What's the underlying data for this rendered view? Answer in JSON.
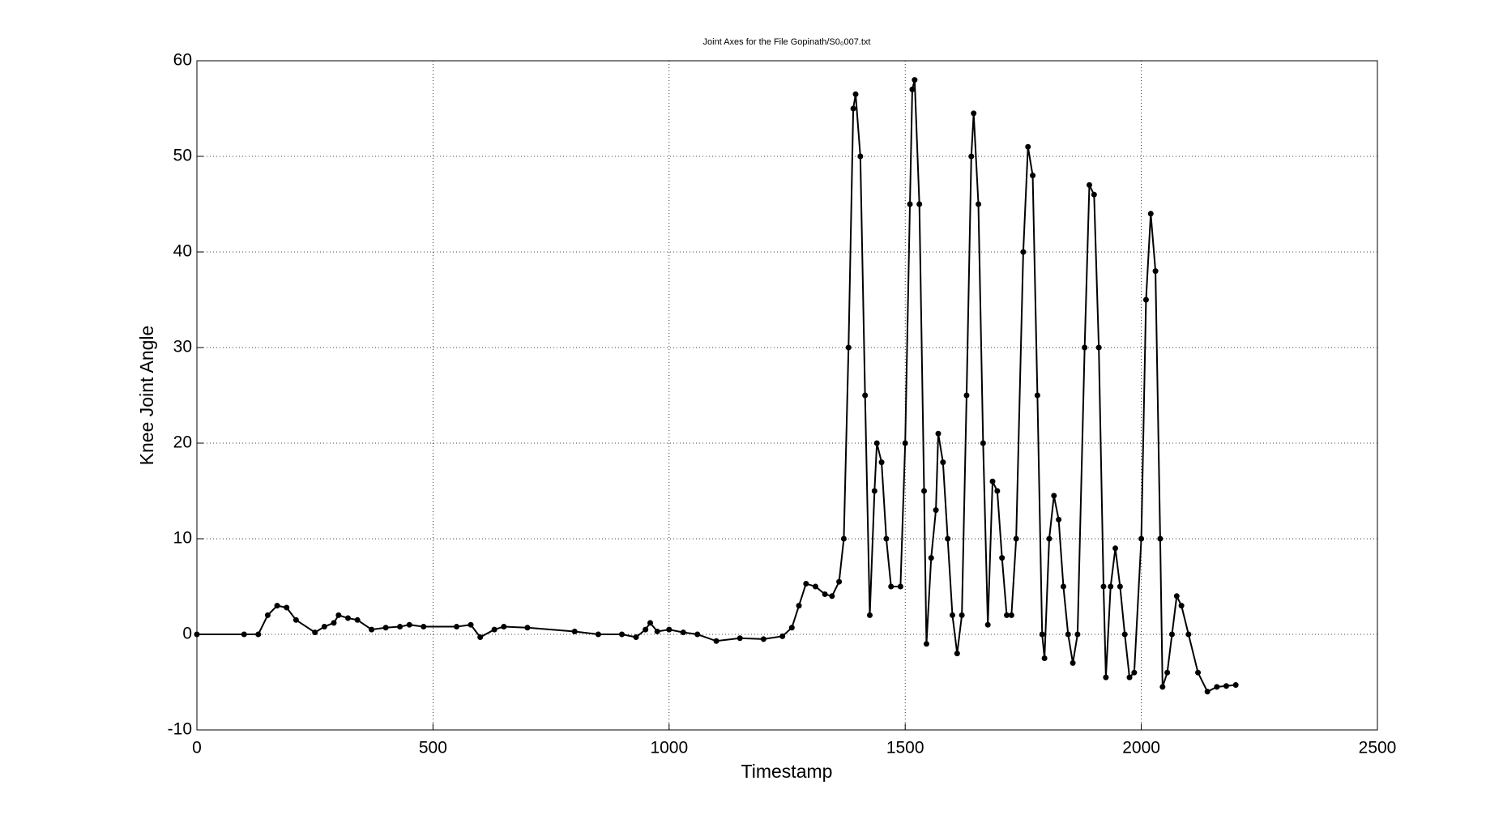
{
  "chart_data": {
    "type": "line",
    "title": "Joint Axes for the File Gopinath/S0₀007.txt",
    "x_label": "Timestamp",
    "y_label": "Knee Joint Angle",
    "xlim": [
      0,
      2500
    ],
    "ylim": [
      -10,
      60
    ],
    "xticks": [
      0,
      500,
      1000,
      1500,
      2000,
      2500
    ],
    "yticks": [
      -10,
      0,
      10,
      20,
      30,
      40,
      50,
      60
    ],
    "grid": true,
    "series": [
      {
        "color": "#000000",
        "x": [
          0,
          100,
          130,
          150,
          170,
          190,
          210,
          250,
          270,
          290,
          300,
          320,
          340,
          370,
          400,
          430,
          450,
          480,
          550,
          580,
          600,
          630,
          650,
          700,
          800,
          850,
          900,
          930,
          950,
          960,
          975,
          1000,
          1030,
          1060,
          1100,
          1150,
          1200,
          1240,
          1260,
          1275,
          1290,
          1310,
          1330,
          1345,
          1360,
          1370,
          1380,
          1390,
          1395,
          1405,
          1415,
          1425,
          1435,
          1440,
          1450,
          1460,
          1470,
          1490,
          1500,
          1510,
          1515,
          1520,
          1530,
          1540,
          1545,
          1555,
          1565,
          1570,
          1580,
          1590,
          1600,
          1610,
          1620,
          1630,
          1640,
          1645,
          1655,
          1665,
          1675,
          1685,
          1695,
          1705,
          1715,
          1725,
          1735,
          1750,
          1760,
          1770,
          1780,
          1790,
          1795,
          1805,
          1815,
          1825,
          1835,
          1845,
          1855,
          1865,
          1880,
          1890,
          1900,
          1910,
          1920,
          1925,
          1935,
          1945,
          1955,
          1965,
          1975,
          1985,
          2000,
          2010,
          2020,
          2030,
          2040,
          2045,
          2055,
          2065,
          2075,
          2085,
          2100,
          2120,
          2140,
          2160,
          2180,
          2200
        ],
        "values": [
          0,
          0,
          0,
          2,
          3,
          2.8,
          1.5,
          0.2,
          0.8,
          1.2,
          2,
          1.7,
          1.5,
          0.5,
          0.7,
          0.8,
          1,
          0.8,
          0.8,
          1,
          -0.3,
          0.5,
          0.8,
          0.7,
          0.3,
          0,
          0,
          -0.3,
          0.5,
          1.2,
          0.3,
          0.5,
          0.2,
          0,
          -0.7,
          -0.4,
          -0.5,
          -0.2,
          0.7,
          3,
          5.3,
          5,
          4.2,
          4,
          5.5,
          10,
          30,
          55,
          56.5,
          50,
          25,
          2,
          15,
          20,
          18,
          10,
          5,
          5,
          20,
          45,
          57,
          58,
          45,
          15,
          -1,
          8,
          13,
          21,
          18,
          10,
          2,
          -2,
          2,
          25,
          50,
          54.5,
          45,
          20,
          1,
          16,
          15,
          8,
          2,
          2,
          10,
          40,
          51,
          48,
          25,
          0,
          -2.5,
          10,
          14.5,
          12,
          5,
          0,
          -3,
          0,
          30,
          47,
          46,
          30,
          5,
          -4.5,
          5,
          9,
          5,
          0,
          -4.5,
          -4,
          10,
          35,
          44,
          38,
          10,
          -5.5,
          -4,
          0,
          4,
          3,
          0,
          -4,
          -6,
          -5.5,
          -5.4,
          -5.3
        ]
      }
    ]
  }
}
